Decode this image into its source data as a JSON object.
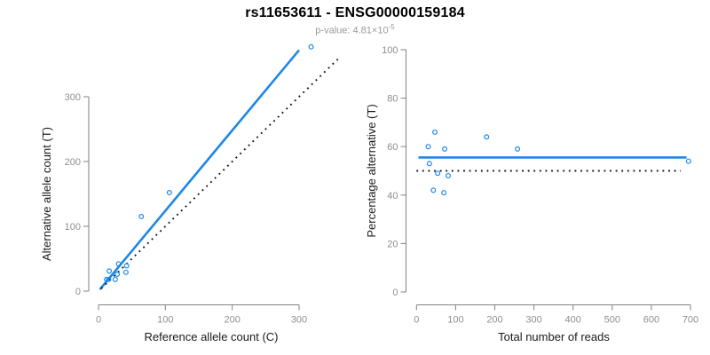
{
  "header": {
    "title": "rs11653611 - ENSG00000159184",
    "subtitle_base": "p-value: 4.81×10",
    "subtitle_exponent": "-5"
  },
  "colors": {
    "accent": "#1e87e5",
    "reference_line": "#111111",
    "axis": "#828282",
    "tick_label": "#8e8e8e",
    "axis_title": "#1a1a1a",
    "title": "#000000",
    "subtitle": "#999999"
  },
  "chart_data": [
    {
      "type": "scatter",
      "panel": "left",
      "xlabel": "Reference allele count (C)",
      "ylabel": "Alternative allele count (T)",
      "xlim": [
        0,
        300
      ],
      "ylim": [
        0,
        300
      ],
      "x_ticks": [
        0,
        100,
        200,
        300
      ],
      "y_ticks": [
        0,
        100,
        200,
        300
      ],
      "grid": false,
      "points": [
        [
          12,
          18
        ],
        [
          15,
          18
        ],
        [
          16,
          31
        ],
        [
          25,
          18
        ],
        [
          28,
          26
        ],
        [
          30,
          42
        ],
        [
          41,
          29
        ],
        [
          42,
          39
        ],
        [
          64,
          115
        ],
        [
          106,
          152
        ],
        [
          318,
          377
        ]
      ],
      "lines": [
        {
          "name": "regression-line",
          "style": "solid",
          "color": "accent",
          "x1": 2,
          "y1": 2.5,
          "x2": 300,
          "y2": 372
        },
        {
          "name": "identity-line",
          "style": "dotted",
          "color": "dark",
          "x1": 4,
          "y1": 4,
          "x2": 362,
          "y2": 362
        }
      ]
    },
    {
      "type": "scatter",
      "panel": "right",
      "xlabel": "Total number of reads",
      "ylabel": "Percentage alternative (T)",
      "xlim": [
        0,
        700
      ],
      "ylim": [
        0,
        100
      ],
      "x_ticks": [
        0,
        100,
        200,
        300,
        400,
        500,
        600,
        700
      ],
      "y_ticks": [
        0,
        20,
        40,
        60,
        80,
        100
      ],
      "grid": false,
      "points": [
        [
          30,
          60
        ],
        [
          33,
          53
        ],
        [
          43,
          42
        ],
        [
          47,
          66
        ],
        [
          54,
          49
        ],
        [
          70,
          41
        ],
        [
          72,
          59
        ],
        [
          81,
          48
        ],
        [
          179,
          64
        ],
        [
          258,
          59
        ],
        [
          695,
          54
        ]
      ],
      "lines": [
        {
          "name": "mean-percentage-line",
          "style": "solid",
          "color": "accent",
          "x1": 5,
          "y1": 55.5,
          "x2": 690,
          "y2": 55.5
        },
        {
          "name": "fifty-percent-line",
          "style": "dotted",
          "color": "dark",
          "x1": 0,
          "y1": 50,
          "x2": 675,
          "y2": 50
        }
      ]
    }
  ]
}
